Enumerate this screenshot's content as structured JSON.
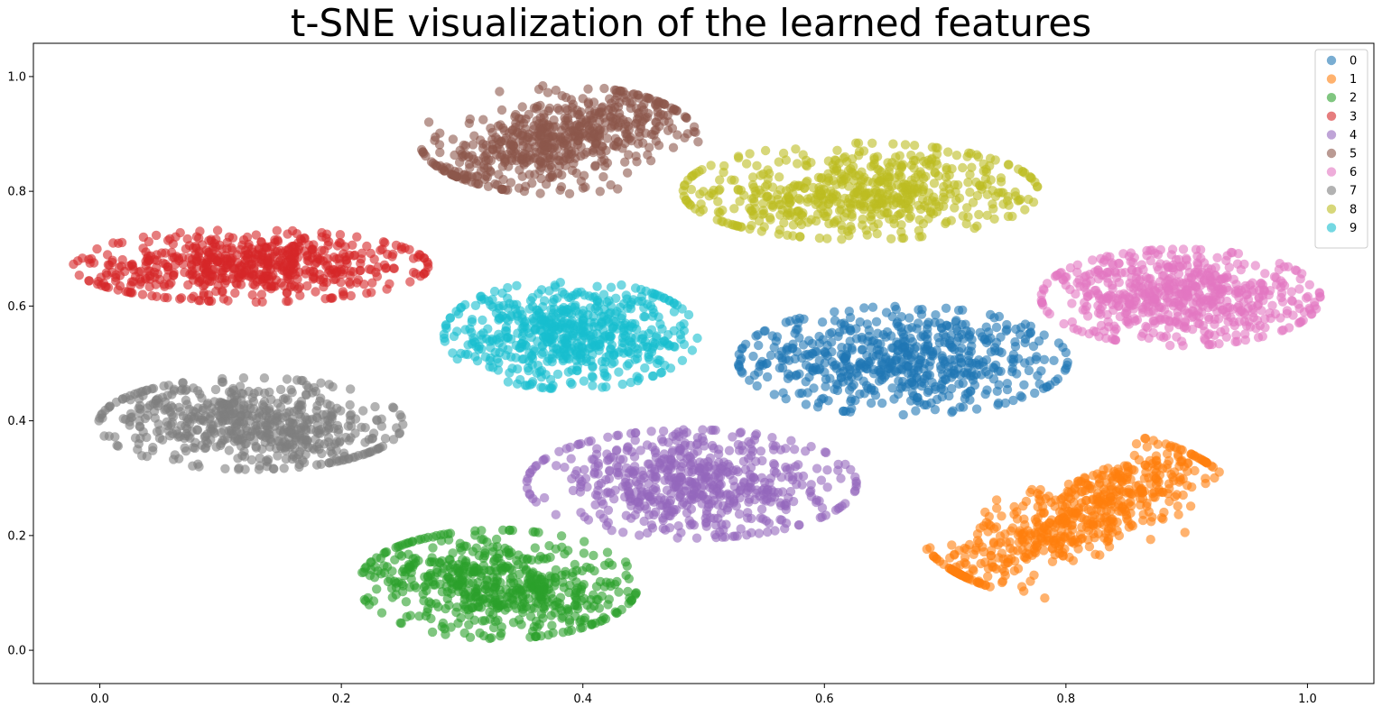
{
  "chart_data": {
    "type": "scatter",
    "title": "t-SNE visualization of the learned features",
    "xlabel": "",
    "ylabel": "",
    "xlim": [
      -0.055,
      1.055
    ],
    "ylim": [
      -0.058,
      1.058
    ],
    "xticks": [
      "0.0",
      "0.2",
      "0.4",
      "0.6",
      "0.8",
      "1.0"
    ],
    "yticks": [
      "0.0",
      "0.2",
      "0.4",
      "0.6",
      "0.8",
      "1.0"
    ],
    "grid": false,
    "legend_position": "top-right",
    "marker_alpha": 0.6,
    "series": [
      {
        "name": "0",
        "color": "#1f77b4",
        "cluster": {
          "cx": 0.665,
          "cy": 0.505,
          "sx": 0.065,
          "sy": 0.045,
          "corr": -0.1,
          "n": 600
        }
      },
      {
        "name": "1",
        "color": "#ff7f0e",
        "cluster": {
          "cx": 0.81,
          "cy": 0.235,
          "sx": 0.065,
          "sy": 0.07,
          "corr": 0.85,
          "n": 600
        }
      },
      {
        "name": "2",
        "color": "#2ca02c",
        "cluster": {
          "cx": 0.33,
          "cy": 0.115,
          "sx": 0.055,
          "sy": 0.045,
          "corr": -0.3,
          "n": 600
        }
      },
      {
        "name": "3",
        "color": "#d62728",
        "cluster": {
          "cx": 0.125,
          "cy": 0.67,
          "sx": 0.07,
          "sy": 0.03,
          "corr": 0.1,
          "n": 600
        }
      },
      {
        "name": "4",
        "color": "#9467bd",
        "cluster": {
          "cx": 0.49,
          "cy": 0.29,
          "sx": 0.065,
          "sy": 0.045,
          "corr": -0.2,
          "n": 600
        }
      },
      {
        "name": "5",
        "color": "#8c564b",
        "cluster": {
          "cx": 0.38,
          "cy": 0.89,
          "sx": 0.055,
          "sy": 0.045,
          "corr": 0.6,
          "n": 600
        }
      },
      {
        "name": "6",
        "color": "#e377c2",
        "cluster": {
          "cx": 0.895,
          "cy": 0.615,
          "sx": 0.055,
          "sy": 0.04,
          "corr": -0.1,
          "n": 600
        }
      },
      {
        "name": "7",
        "color": "#7f7f7f",
        "cluster": {
          "cx": 0.125,
          "cy": 0.395,
          "sx": 0.06,
          "sy": 0.038,
          "corr": -0.3,
          "n": 600
        }
      },
      {
        "name": "8",
        "color": "#bcbd22",
        "cluster": {
          "cx": 0.63,
          "cy": 0.8,
          "sx": 0.07,
          "sy": 0.04,
          "corr": 0.2,
          "n": 600
        }
      },
      {
        "name": "9",
        "color": "#17becf",
        "cluster": {
          "cx": 0.39,
          "cy": 0.55,
          "sx": 0.05,
          "sy": 0.045,
          "corr": 0.0,
          "n": 600
        }
      }
    ]
  }
}
